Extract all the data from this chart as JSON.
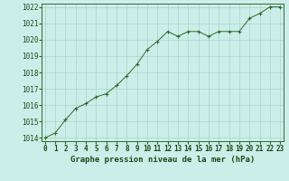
{
  "x": [
    0,
    1,
    2,
    3,
    4,
    5,
    6,
    7,
    8,
    9,
    10,
    11,
    12,
    13,
    14,
    15,
    16,
    17,
    18,
    19,
    20,
    21,
    22,
    23
  ],
  "y": [
    1014.0,
    1014.3,
    1015.1,
    1015.8,
    1016.1,
    1016.5,
    1016.7,
    1017.2,
    1017.8,
    1018.5,
    1019.4,
    1019.9,
    1020.5,
    1020.2,
    1020.5,
    1020.5,
    1020.2,
    1020.5,
    1020.5,
    1020.5,
    1021.3,
    1021.6,
    1022.0,
    1022.0
  ],
  "ylim_min": 1013.8,
  "ylim_max": 1022.2,
  "xlim_min": -0.3,
  "xlim_max": 23.3,
  "yticks": [
    1014,
    1015,
    1016,
    1017,
    1018,
    1019,
    1020,
    1021,
    1022
  ],
  "xticks": [
    0,
    1,
    2,
    3,
    4,
    5,
    6,
    7,
    8,
    9,
    10,
    11,
    12,
    13,
    14,
    15,
    16,
    17,
    18,
    19,
    20,
    21,
    22,
    23
  ],
  "xlabel": "Graphe pression niveau de la mer (hPa)",
  "line_color": "#2d6a2d",
  "marker": "+",
  "bg_color": "#cceee8",
  "grid_color": "#aad4ce",
  "text_color": "#1a4a1a",
  "spine_color": "#2d6a2d",
  "tick_fontsize": 5.5,
  "label_fontsize": 6.5
}
